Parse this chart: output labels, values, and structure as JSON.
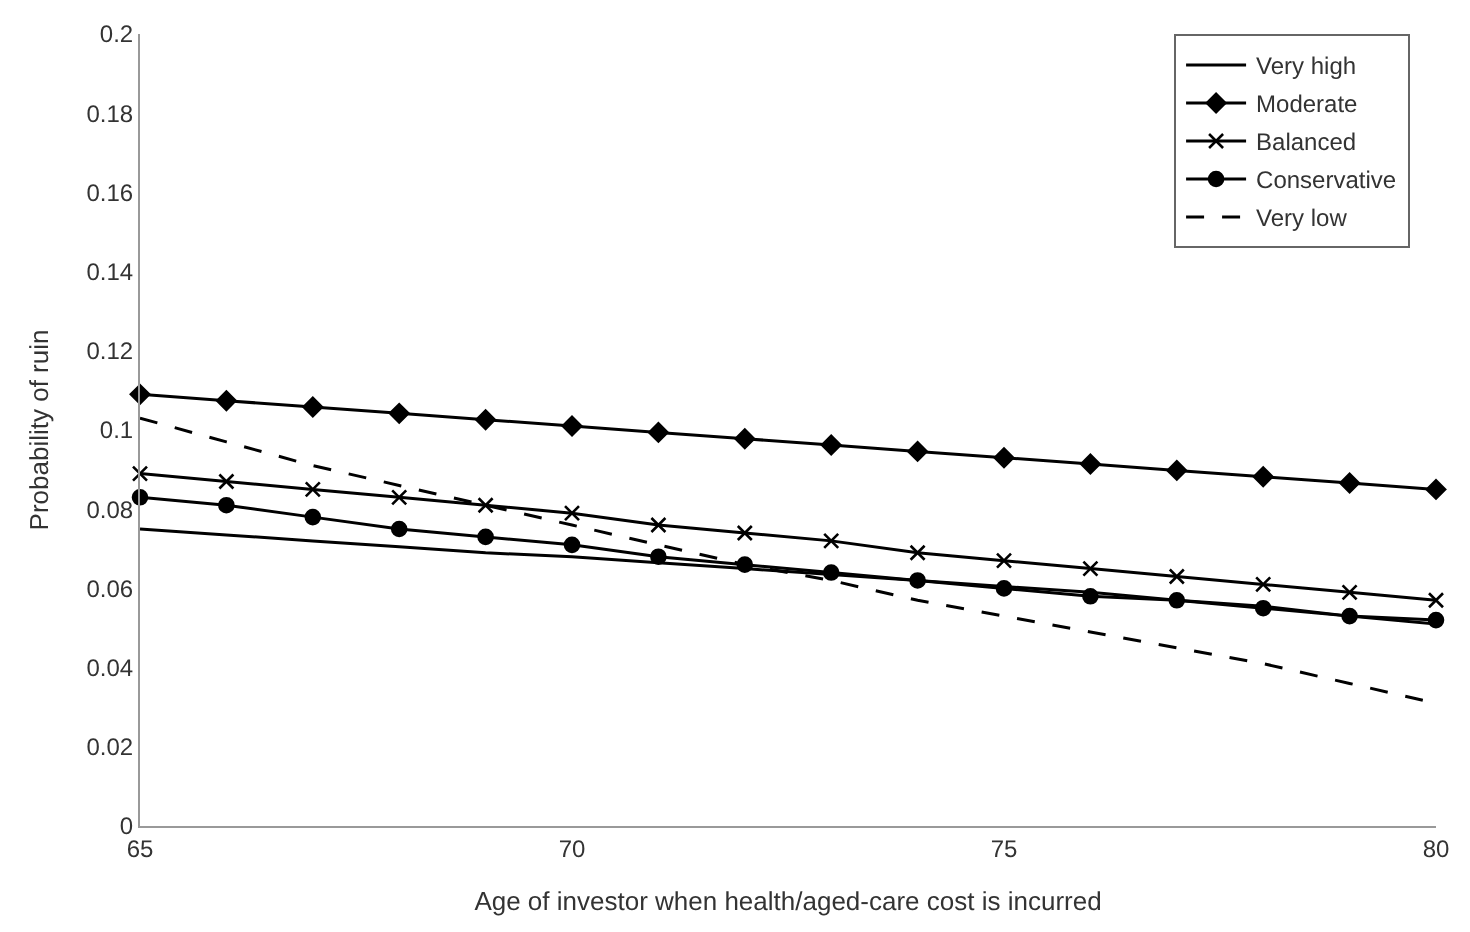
{
  "chart_data": {
    "type": "line",
    "xlabel": "Age of investor when health/aged-care cost is incurred",
    "ylabel": "Probability of ruin",
    "x": [
      65,
      66,
      67,
      68,
      69,
      70,
      71,
      72,
      73,
      74,
      75,
      76,
      77,
      78,
      79,
      80
    ],
    "xlim": [
      65,
      80
    ],
    "xticks": [
      65,
      70,
      75,
      80
    ],
    "ylim": [
      0,
      0.2
    ],
    "yticks": [
      0,
      0.02,
      0.04,
      0.06,
      0.08,
      0.1,
      0.12,
      0.14,
      0.16,
      0.18,
      0.2
    ],
    "legend": "top right",
    "series": [
      {
        "name": "Very high",
        "color": "#000000",
        "marker": "none",
        "line_style": "solid",
        "values": [
          0.075,
          0.0735,
          0.072,
          0.0705,
          0.069,
          0.068,
          0.0665,
          0.065,
          0.0635,
          0.062,
          0.0605,
          0.059,
          0.057,
          0.0555,
          0.053,
          0.051
        ]
      },
      {
        "name": "Moderate",
        "color": "#000000",
        "marker": "diamond",
        "line_style": "solid",
        "values": [
          0.109,
          0.1074,
          0.1058,
          0.1042,
          0.1026,
          0.101,
          0.0994,
          0.0978,
          0.0962,
          0.0946,
          0.093,
          0.0914,
          0.0898,
          0.0882,
          0.0866,
          0.085
        ]
      },
      {
        "name": "Balanced",
        "color": "#000000",
        "marker": "cross",
        "line_style": "solid",
        "values": [
          0.089,
          0.087,
          0.085,
          0.083,
          0.081,
          0.079,
          0.076,
          0.074,
          0.072,
          0.069,
          0.067,
          0.065,
          0.063,
          0.061,
          0.059,
          0.057
        ]
      },
      {
        "name": "Conservative",
        "color": "#000000",
        "marker": "circle",
        "line_style": "solid",
        "values": [
          0.083,
          0.081,
          0.078,
          0.075,
          0.073,
          0.071,
          0.068,
          0.066,
          0.064,
          0.062,
          0.06,
          0.058,
          0.057,
          0.055,
          0.053,
          0.052
        ]
      },
      {
        "name": "Very low",
        "color": "#000000",
        "marker": "none",
        "line_style": "dashed",
        "values": [
          0.103,
          0.097,
          0.091,
          0.086,
          0.081,
          0.076,
          0.071,
          0.066,
          0.062,
          0.057,
          0.053,
          0.049,
          0.045,
          0.041,
          0.036,
          0.031
        ]
      }
    ]
  }
}
